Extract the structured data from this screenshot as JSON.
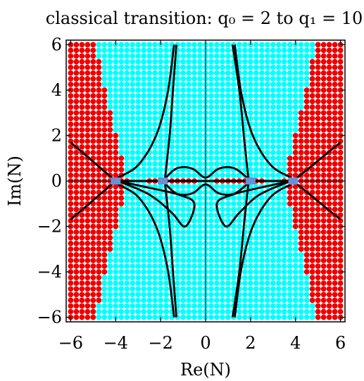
{
  "chart_data": {
    "type": "scatter",
    "title": "classical transition: q₀ = 2 to q₁ = 10",
    "xlabel": "Re(N)",
    "ylabel": "Im(N)",
    "xlim": [
      -6.2,
      6.2
    ],
    "ylim": [
      -6.2,
      6.2
    ],
    "xticks": [
      -6,
      -4,
      -2,
      0,
      2,
      4,
      6
    ],
    "yticks": [
      -6,
      -4,
      -2,
      0,
      2,
      4,
      6
    ],
    "xtick_labels": [
      "−6",
      "−4",
      "−2",
      "0",
      "2",
      "4",
      "6"
    ],
    "ytick_labels": [
      "−6",
      "−4",
      "−2",
      "0",
      "2",
      "4",
      "6"
    ],
    "grid": false,
    "colors": {
      "region_a": "#00ffff",
      "region_b": "#ee0000",
      "saddle": "#6a8fd6",
      "curve": "#000000"
    },
    "grid_points": {
      "x_range": [
        -6,
        6
      ],
      "y_range": [
        -6,
        6
      ],
      "step": 0.25,
      "red_boundary": [
        {
          "y": 0,
          "x": 3.5
        },
        {
          "y": 2,
          "x": 4.0
        },
        {
          "y": 4,
          "x": 4.5
        },
        {
          "y": 6,
          "x": 4.9
        }
      ],
      "red_real_axis_segments": [
        [
          -4.4,
          -3.7
        ],
        [
          -2.6,
          -0.5
        ],
        [
          0.5,
          2.6
        ],
        [
          3.7,
          4.4
        ]
      ]
    },
    "saddles": [
      {
        "re": -4.0,
        "im": 0
      },
      {
        "re": -1.9,
        "im": 0
      },
      {
        "re": 2.0,
        "im": 0
      },
      {
        "re": 3.9,
        "im": 0
      }
    ],
    "curves": [
      {
        "name": "outer-asymptote-rising",
        "x": [
          -6.0,
          -4.0,
          3.9,
          6.0
        ],
        "y": [
          -1.7,
          0.0,
          0.0,
          1.7
        ]
      },
      {
        "name": "outer-asymptote-falling",
        "x": [
          -6.0,
          -4.0,
          3.9,
          6.0
        ],
        "y": [
          1.7,
          0.0,
          0.0,
          -1.7
        ]
      },
      {
        "name": "inner-upper-left",
        "x": [
          -3.9,
          -3.0,
          -2.2,
          -1.7,
          -1.4
        ],
        "y": [
          0.15,
          0.7,
          2.0,
          3.8,
          6.0
        ]
      },
      {
        "name": "inner-upper-left-2",
        "x": [
          -1.8,
          -1.6,
          -1.45,
          -1.3
        ],
        "y": [
          0.15,
          2.0,
          4.0,
          6.0
        ]
      },
      {
        "name": "inner-lower-left",
        "x": [
          -3.9,
          -3.0,
          -2.2,
          -1.7,
          -1.4
        ],
        "y": [
          -0.15,
          -0.7,
          -2.0,
          -3.8,
          -6.0
        ]
      },
      {
        "name": "inner-lower-left-2",
        "x": [
          -1.8,
          -1.6,
          -1.45,
          -1.3
        ],
        "y": [
          -0.15,
          -2.0,
          -4.0,
          -6.0
        ]
      },
      {
        "name": "inner-upper-right",
        "x": [
          3.8,
          2.9,
          2.1,
          1.6,
          1.3
        ],
        "y": [
          0.15,
          0.7,
          2.0,
          3.8,
          6.0
        ]
      },
      {
        "name": "inner-upper-right-2",
        "x": [
          1.9,
          1.7,
          1.5,
          1.2
        ],
        "y": [
          0.15,
          2.0,
          4.0,
          6.0
        ]
      },
      {
        "name": "inner-lower-right",
        "x": [
          3.8,
          2.9,
          2.1,
          1.6,
          1.3
        ],
        "y": [
          -0.15,
          -0.7,
          -2.0,
          -3.8,
          -6.0
        ]
      },
      {
        "name": "inner-lower-right-2",
        "x": [
          1.9,
          1.7,
          1.5,
          1.2
        ],
        "y": [
          -0.15,
          -2.0,
          -4.0,
          -6.0
        ]
      },
      {
        "name": "center-loop-upper",
        "x": [
          -1.9,
          -1.3,
          -0.6,
          0.0,
          0.6,
          1.3,
          2.0
        ],
        "y": [
          0.0,
          0.55,
          0.55,
          0.15,
          0.55,
          0.55,
          0.0
        ]
      },
      {
        "name": "center-loop-lower",
        "x": [
          -1.9,
          -1.3,
          -0.6,
          0.0,
          0.6,
          1.3,
          2.0
        ],
        "y": [
          0.0,
          -0.55,
          -0.55,
          -0.15,
          -0.55,
          -0.55,
          0.0
        ]
      },
      {
        "name": "lower-lens-left",
        "x": [
          -3.9,
          -2.5,
          -1.5,
          -0.9,
          -0.5,
          -1.2,
          -2.5,
          -3.9
        ],
        "y": [
          0.0,
          -0.6,
          -1.4,
          -2.0,
          -1.0,
          -0.6,
          -0.3,
          0.0
        ]
      },
      {
        "name": "lower-lens-right",
        "x": [
          3.8,
          2.4,
          1.5,
          0.9,
          0.5,
          1.2,
          2.4,
          3.8
        ],
        "y": [
          0.0,
          -0.6,
          -1.4,
          -2.0,
          -1.0,
          -0.6,
          -0.3,
          0.0
        ]
      }
    ]
  }
}
